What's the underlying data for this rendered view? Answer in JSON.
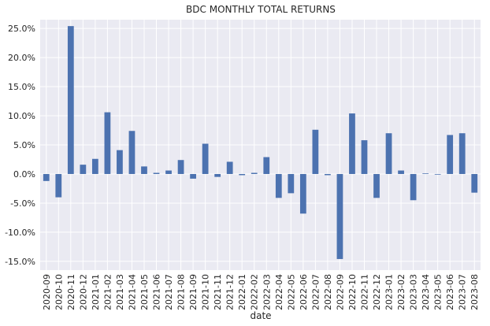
{
  "chart_data": {
    "type": "bar",
    "title": "BDC MONTHLY TOTAL RETURNS",
    "xlabel": "date",
    "ylabel": "",
    "ylim": [
      -0.165,
      0.265
    ],
    "yticks": [
      -0.15,
      -0.1,
      -0.05,
      0.0,
      0.05,
      0.1,
      0.15,
      0.2,
      0.25
    ],
    "ytick_labels": [
      "-15.0%",
      "-10.0%",
      "-5.0%",
      "0.0%",
      "5.0%",
      "10.0%",
      "15.0%",
      "20.0%",
      "25.0%"
    ],
    "grid": true,
    "bar_color": "#4c72b0",
    "background_color": "#eaeaf2",
    "categories": [
      "2020-09",
      "2020-10",
      "2020-11",
      "2020-12",
      "2021-01",
      "2021-02",
      "2021-03",
      "2021-04",
      "2021-05",
      "2021-06",
      "2021-07",
      "2021-08",
      "2021-09",
      "2021-10",
      "2021-11",
      "2021-12",
      "2022-01",
      "2022-02",
      "2022-03",
      "2022-04",
      "2022-05",
      "2022-06",
      "2022-07",
      "2022-08",
      "2022-09",
      "2022-10",
      "2022-11",
      "2022-12",
      "2023-01",
      "2023-02",
      "2023-03",
      "2023-04",
      "2023-05",
      "2023-06",
      "2023-07",
      "2023-08"
    ],
    "values": [
      -0.012,
      -0.04,
      0.254,
      0.016,
      0.026,
      0.106,
      0.041,
      0.074,
      0.013,
      0.002,
      0.006,
      0.024,
      -0.008,
      0.052,
      -0.005,
      0.021,
      -0.002,
      0.002,
      0.029,
      -0.041,
      -0.033,
      -0.068,
      0.076,
      -0.002,
      -0.146,
      0.104,
      0.058,
      -0.041,
      0.07,
      0.006,
      -0.045,
      0.001,
      -0.001,
      0.067,
      0.07,
      -0.032
    ]
  }
}
